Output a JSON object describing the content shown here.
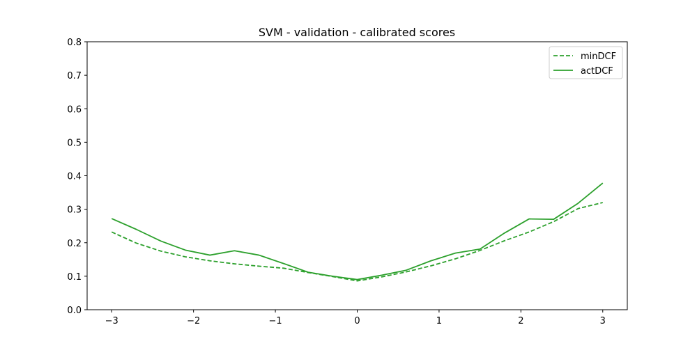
{
  "chart_data": {
    "type": "line",
    "title": "SVM - validation - calibrated scores",
    "xlabel": "",
    "ylabel": "",
    "xlim": [
      -3.3,
      3.3
    ],
    "ylim": [
      0.0,
      0.8
    ],
    "x_ticks": [
      -3,
      -2,
      -1,
      0,
      1,
      2,
      3
    ],
    "x_tick_labels": [
      "−3",
      "−2",
      "−1",
      "0",
      "1",
      "2",
      "3"
    ],
    "y_ticks": [
      0.0,
      0.1,
      0.2,
      0.3,
      0.4,
      0.5,
      0.6,
      0.7,
      0.8
    ],
    "y_tick_labels": [
      "0.0",
      "0.1",
      "0.2",
      "0.3",
      "0.4",
      "0.5",
      "0.6",
      "0.7",
      "0.8"
    ],
    "grid": false,
    "legend_position": "top-right",
    "color": "#2ca02c",
    "x": [
      -3.0,
      -2.7,
      -2.4,
      -2.1,
      -1.8,
      -1.5,
      -1.2,
      -0.9,
      -0.6,
      -0.3,
      0.0,
      0.3,
      0.6,
      0.9,
      1.2,
      1.5,
      1.8,
      2.1,
      2.4,
      2.7,
      3.0
    ],
    "series": [
      {
        "name": "minDCF",
        "style": "dashed",
        "values": [
          0.232,
          0.199,
          0.175,
          0.158,
          0.146,
          0.137,
          0.13,
          0.124,
          0.111,
          0.099,
          0.086,
          0.098,
          0.113,
          0.131,
          0.152,
          0.177,
          0.206,
          0.232,
          0.263,
          0.302,
          0.32
        ]
      },
      {
        "name": "actDCF",
        "style": "solid",
        "values": [
          0.272,
          0.24,
          0.205,
          0.178,
          0.163,
          0.176,
          0.163,
          0.138,
          0.112,
          0.1,
          0.09,
          0.103,
          0.118,
          0.146,
          0.169,
          0.181,
          0.229,
          0.271,
          0.27,
          0.318,
          0.378
        ]
      }
    ]
  }
}
